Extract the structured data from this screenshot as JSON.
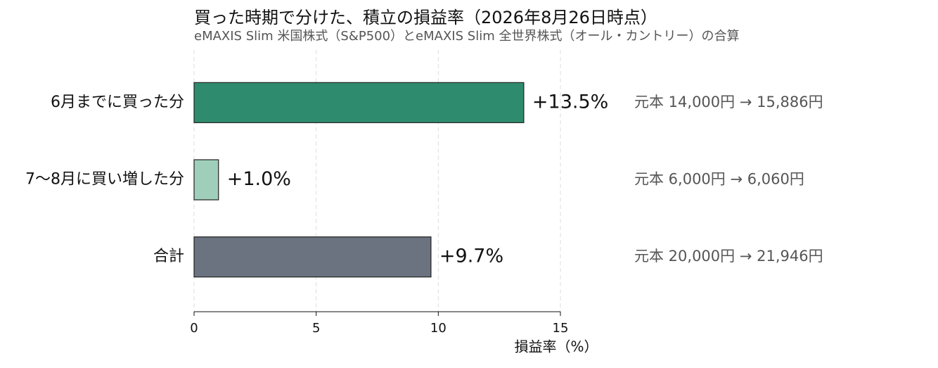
{
  "chart_data": {
    "type": "bar",
    "orientation": "horizontal",
    "title": "買った時期で分けた、積立の損益率（2026年8月26日時点）",
    "subtitle": "eMAXIS Slim 米国株式（S&P500）とeMAXIS Slim 全世界株式（オール・カントリー）の合算",
    "categories": [
      "6月までに買った分",
      "7〜8月に買い増した分",
      "合計"
    ],
    "values": [
      13.5,
      1.0,
      9.7
    ],
    "value_labels": [
      "+13.5%",
      "+1.0%",
      "+9.7%"
    ],
    "colors": [
      "#2e8b6e",
      "#9fcfba",
      "#6b7280"
    ],
    "annotations": [
      "元本 14,000円 → 15,886円",
      "元本 6,000円 → 6,060円",
      "元本 20,000円 → 21,946円"
    ],
    "xlabel": "損益率（%）",
    "xlim": [
      0,
      15
    ],
    "xticks": [
      0,
      5,
      10,
      15
    ],
    "grid": true
  }
}
